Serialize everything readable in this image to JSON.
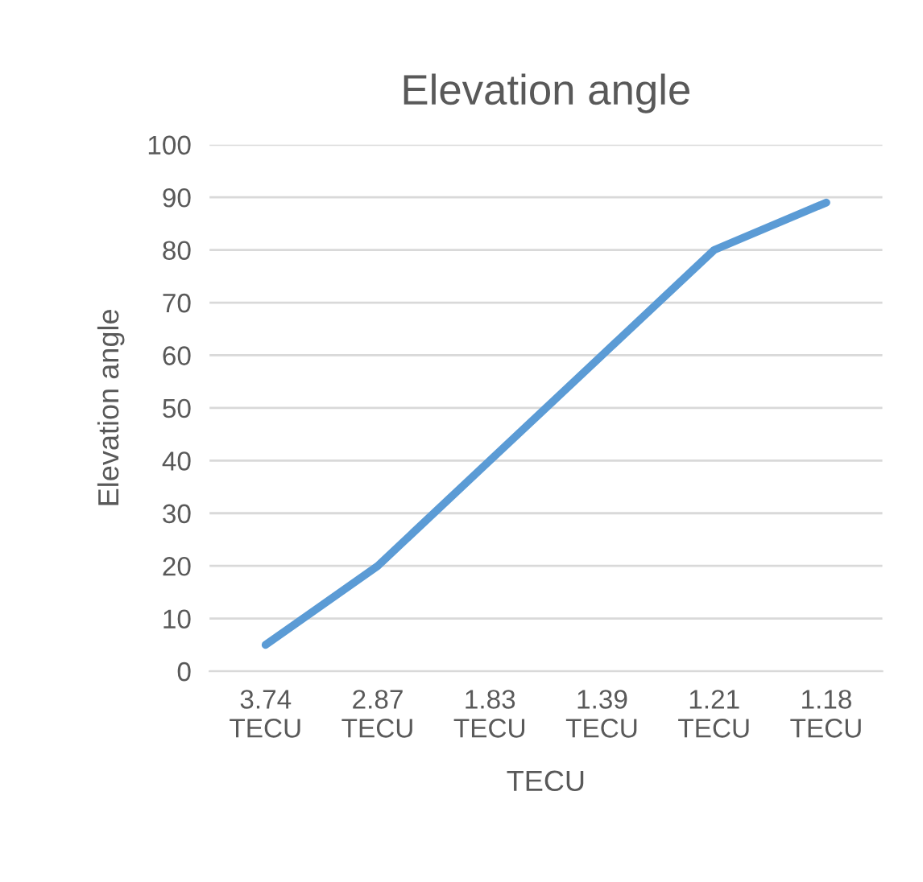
{
  "chart_data": {
    "type": "line",
    "title": "Elevation angle",
    "xlabel": "TECU",
    "ylabel": "Elevation angle",
    "categories": [
      "3.74\nTECU",
      "2.87\nTECU",
      "1.83\nTECU",
      "1.39\nTECU",
      "1.21\nTECU",
      "1.18\nTECU"
    ],
    "series": [
      {
        "color": "#5b9bd5",
        "values": [
          5,
          20,
          40,
          60,
          80,
          89
        ]
      }
    ],
    "ylim": [
      0,
      100
    ],
    "yticks": [
      0,
      10,
      20,
      30,
      40,
      50,
      60,
      70,
      80,
      90,
      100
    ],
    "grid": "y",
    "legend": false,
    "marker": "none",
    "line_style": "solid"
  }
}
